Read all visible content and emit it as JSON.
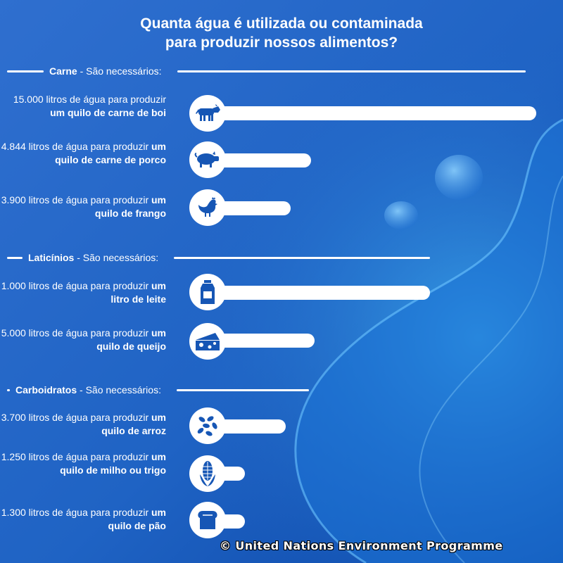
{
  "title": {
    "line1": "Quanta água é utilizada ou contaminada",
    "line2": "para produzir nossos alimentos?"
  },
  "sections": [
    {
      "name": "Carne",
      "suffix": " - São necessários:"
    },
    {
      "name": "Laticínios",
      "suffix": " - São necessários:"
    },
    {
      "name": "Carboidratos",
      "suffix": " - São necessários:"
    }
  ],
  "items": [
    {
      "plain": "15.000 litros de água para produzir ",
      "bold": "um quilo de carne de boi",
      "icon": "cow-icon"
    },
    {
      "plain": "4.844 litros de água para produzir ",
      "bold": "um quilo de carne de porco",
      "icon": "pig-icon"
    },
    {
      "plain": "3.900 litros de água para produzir ",
      "bold": "um quilo de frango",
      "icon": "chicken-icon"
    },
    {
      "plain": "1.000 litros de água para produzir ",
      "bold": "um litro de leite",
      "icon": "milk-carton-icon"
    },
    {
      "plain": "5.000 litros de água para produzir ",
      "bold": "um quilo de queijo",
      "icon": "cheese-icon"
    },
    {
      "plain": "3.700 litros de água para produzir ",
      "bold": "um quilo de arroz",
      "icon": "rice-icon"
    },
    {
      "plain": "1.250 litros de água para produzir ",
      "bold": "um quilo de milho ou trigo",
      "icon": "corn-icon"
    },
    {
      "plain": "1.300 litros de água para produzir ",
      "bold": "um quilo de pão",
      "icon": "bread-icon"
    }
  ],
  "chart_data": {
    "type": "bar",
    "orientation": "horizontal",
    "unit": "litros de água",
    "groups": [
      "Carne",
      "Carne",
      "Carne",
      "Laticínios",
      "Laticínios",
      "Carboidratos",
      "Carboidratos",
      "Carboidratos"
    ],
    "categories": [
      "carne de boi",
      "carne de porco",
      "frango",
      "leite",
      "queijo",
      "arroz",
      "milho ou trigo",
      "pão"
    ],
    "values": [
      15000,
      4844,
      3900,
      1000,
      5000,
      3700,
      1250,
      1300
    ],
    "grid": false,
    "legend": "none"
  },
  "colors": {
    "background_dark": "#0a3f9c",
    "background_light": "#2d8fe0",
    "bar": "#ffffff",
    "icon": "#1656b5"
  },
  "credit": "© United Nations Environment Programme"
}
